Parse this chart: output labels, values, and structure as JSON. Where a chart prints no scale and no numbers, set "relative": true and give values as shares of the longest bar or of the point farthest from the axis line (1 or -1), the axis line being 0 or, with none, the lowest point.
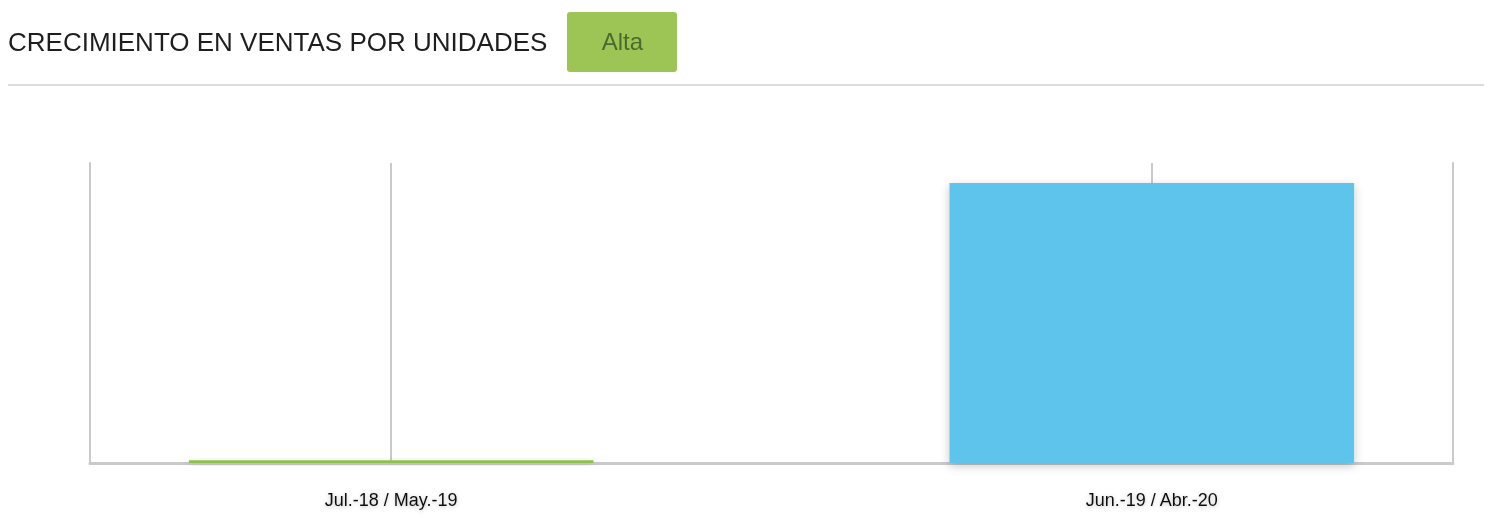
{
  "chart_data": {
    "type": "bar",
    "title": "CRECIMIENTO EN VENTAS POR UNIDADES",
    "annotations": [
      "Alta"
    ],
    "categories": [
      "Jul.-18 / May.-19",
      "Jun.-19 / Abr.-20"
    ],
    "values": [
      0.01,
      1
    ],
    "colors": [
      "#8bc34a",
      "#5fc4ec"
    ],
    "relative": true,
    "grid": "x"
  }
}
